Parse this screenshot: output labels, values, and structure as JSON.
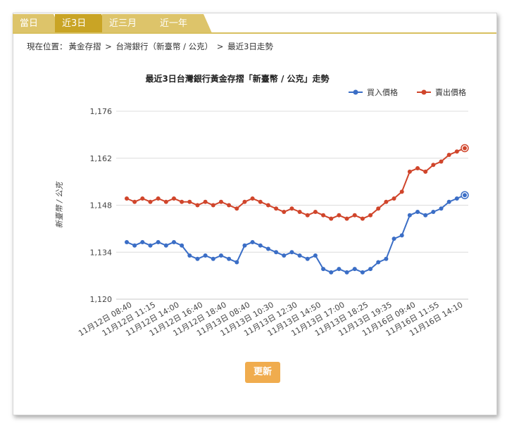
{
  "tabs": [
    {
      "label": "當日",
      "active": false
    },
    {
      "label": "近3日",
      "active": true
    },
    {
      "label": "近三月",
      "active": false
    },
    {
      "label": "近一年",
      "active": false
    }
  ],
  "breadcrumb": {
    "prefix": "現在位置：",
    "items": [
      "黃金存摺",
      "台灣銀行（新臺幣 / 公克）",
      "最近3日走勢"
    ],
    "separator": " > "
  },
  "refresh_label": "更新",
  "colors": {
    "buy": "#3b6ec6",
    "sell": "#d0452b",
    "tab_active": "#c9a425",
    "tab_inactive": "#ddc46a",
    "button": "#f0ac4e"
  },
  "chart_data": {
    "type": "line",
    "title": "最近3日台灣銀行黃金存摺「新臺幣 / 公克」走勢",
    "ylabel": "新臺幣 / 公克",
    "xlabel": "",
    "ylim": [
      1120,
      1176
    ],
    "yticks": [
      "1,120",
      "1,134",
      "1,148",
      "1,162",
      "1,176"
    ],
    "grid": true,
    "legend_position": "top-right",
    "x_tick_labels": [
      "11月12日 08:40",
      "11月12日 11:15",
      "11月12日 14:00",
      "11月12日 16:40",
      "11月12日 18:40",
      "11月13日 08:40",
      "11月13日 10:30",
      "11月13日 12:30",
      "11月13日 14:50",
      "11月13日 17:00",
      "11月13日 18:25",
      "11月13日 19:35",
      "11月16日 09:40",
      "11月16日 11:55",
      "11月16日 14:10"
    ],
    "series": [
      {
        "name": "買入價格",
        "values": [
          1137,
          1136,
          1137,
          1136,
          1137,
          1136,
          1137,
          1136,
          1133,
          1132,
          1133,
          1132,
          1133,
          1132,
          1131,
          1136,
          1137,
          1136,
          1135,
          1134,
          1133,
          1134,
          1133,
          1132,
          1133,
          1129,
          1128,
          1129,
          1128,
          1129,
          1128,
          1129,
          1131,
          1132,
          1138,
          1139,
          1145,
          1146,
          1145,
          1146,
          1147,
          1149,
          1150,
          1151
        ]
      },
      {
        "name": "賣出價格",
        "values": [
          1150,
          1149,
          1150,
          1149,
          1150,
          1149,
          1150,
          1149,
          1149,
          1148,
          1149,
          1148,
          1149,
          1148,
          1147,
          1149,
          1150,
          1149,
          1148,
          1147,
          1146,
          1147,
          1146,
          1145,
          1146,
          1145,
          1144,
          1145,
          1144,
          1145,
          1144,
          1145,
          1147,
          1149,
          1150,
          1152,
          1158,
          1159,
          1158,
          1160,
          1161,
          1163,
          1164,
          1165
        ]
      }
    ]
  }
}
